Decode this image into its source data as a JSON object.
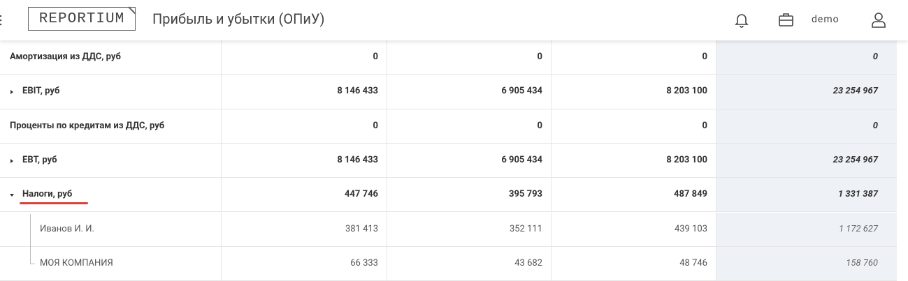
{
  "header": {
    "logo": "REPORTIUM",
    "title": "Прибыль и убытки (ОПиУ)",
    "user": "demo"
  },
  "table": {
    "rows": [
      {
        "label": "Амортизация из ДДС, руб",
        "cells": [
          "0",
          "0",
          "0"
        ],
        "total": "0"
      },
      {
        "label": "EBIT, руб",
        "cells": [
          "8 146 433",
          "6 905 434",
          "8 203 100"
        ],
        "total": "23 254 967",
        "marker": "collapsed"
      },
      {
        "label": "Проценты по кредитам из ДДС, руб",
        "cells": [
          "0",
          "0",
          "0"
        ],
        "total": "0"
      },
      {
        "label": "EBT, руб",
        "cells": [
          "8 146 433",
          "6 905 434",
          "8 203 100"
        ],
        "total": "23 254 967",
        "marker": "collapsed"
      },
      {
        "label": "Налоги, руб",
        "cells": [
          "447 746",
          "395 793",
          "487 849"
        ],
        "total": "1 331 387",
        "marker": "expanded"
      },
      {
        "label": "Иванов И. И.",
        "cells": [
          "381 413",
          "352 111",
          "439 103"
        ],
        "total": "1 172 627",
        "child": true
      },
      {
        "label": "МОЯ КОМПАНИЯ",
        "cells": [
          "66 333",
          "43 682",
          "48 746"
        ],
        "total": "158 760",
        "child": true
      }
    ]
  }
}
